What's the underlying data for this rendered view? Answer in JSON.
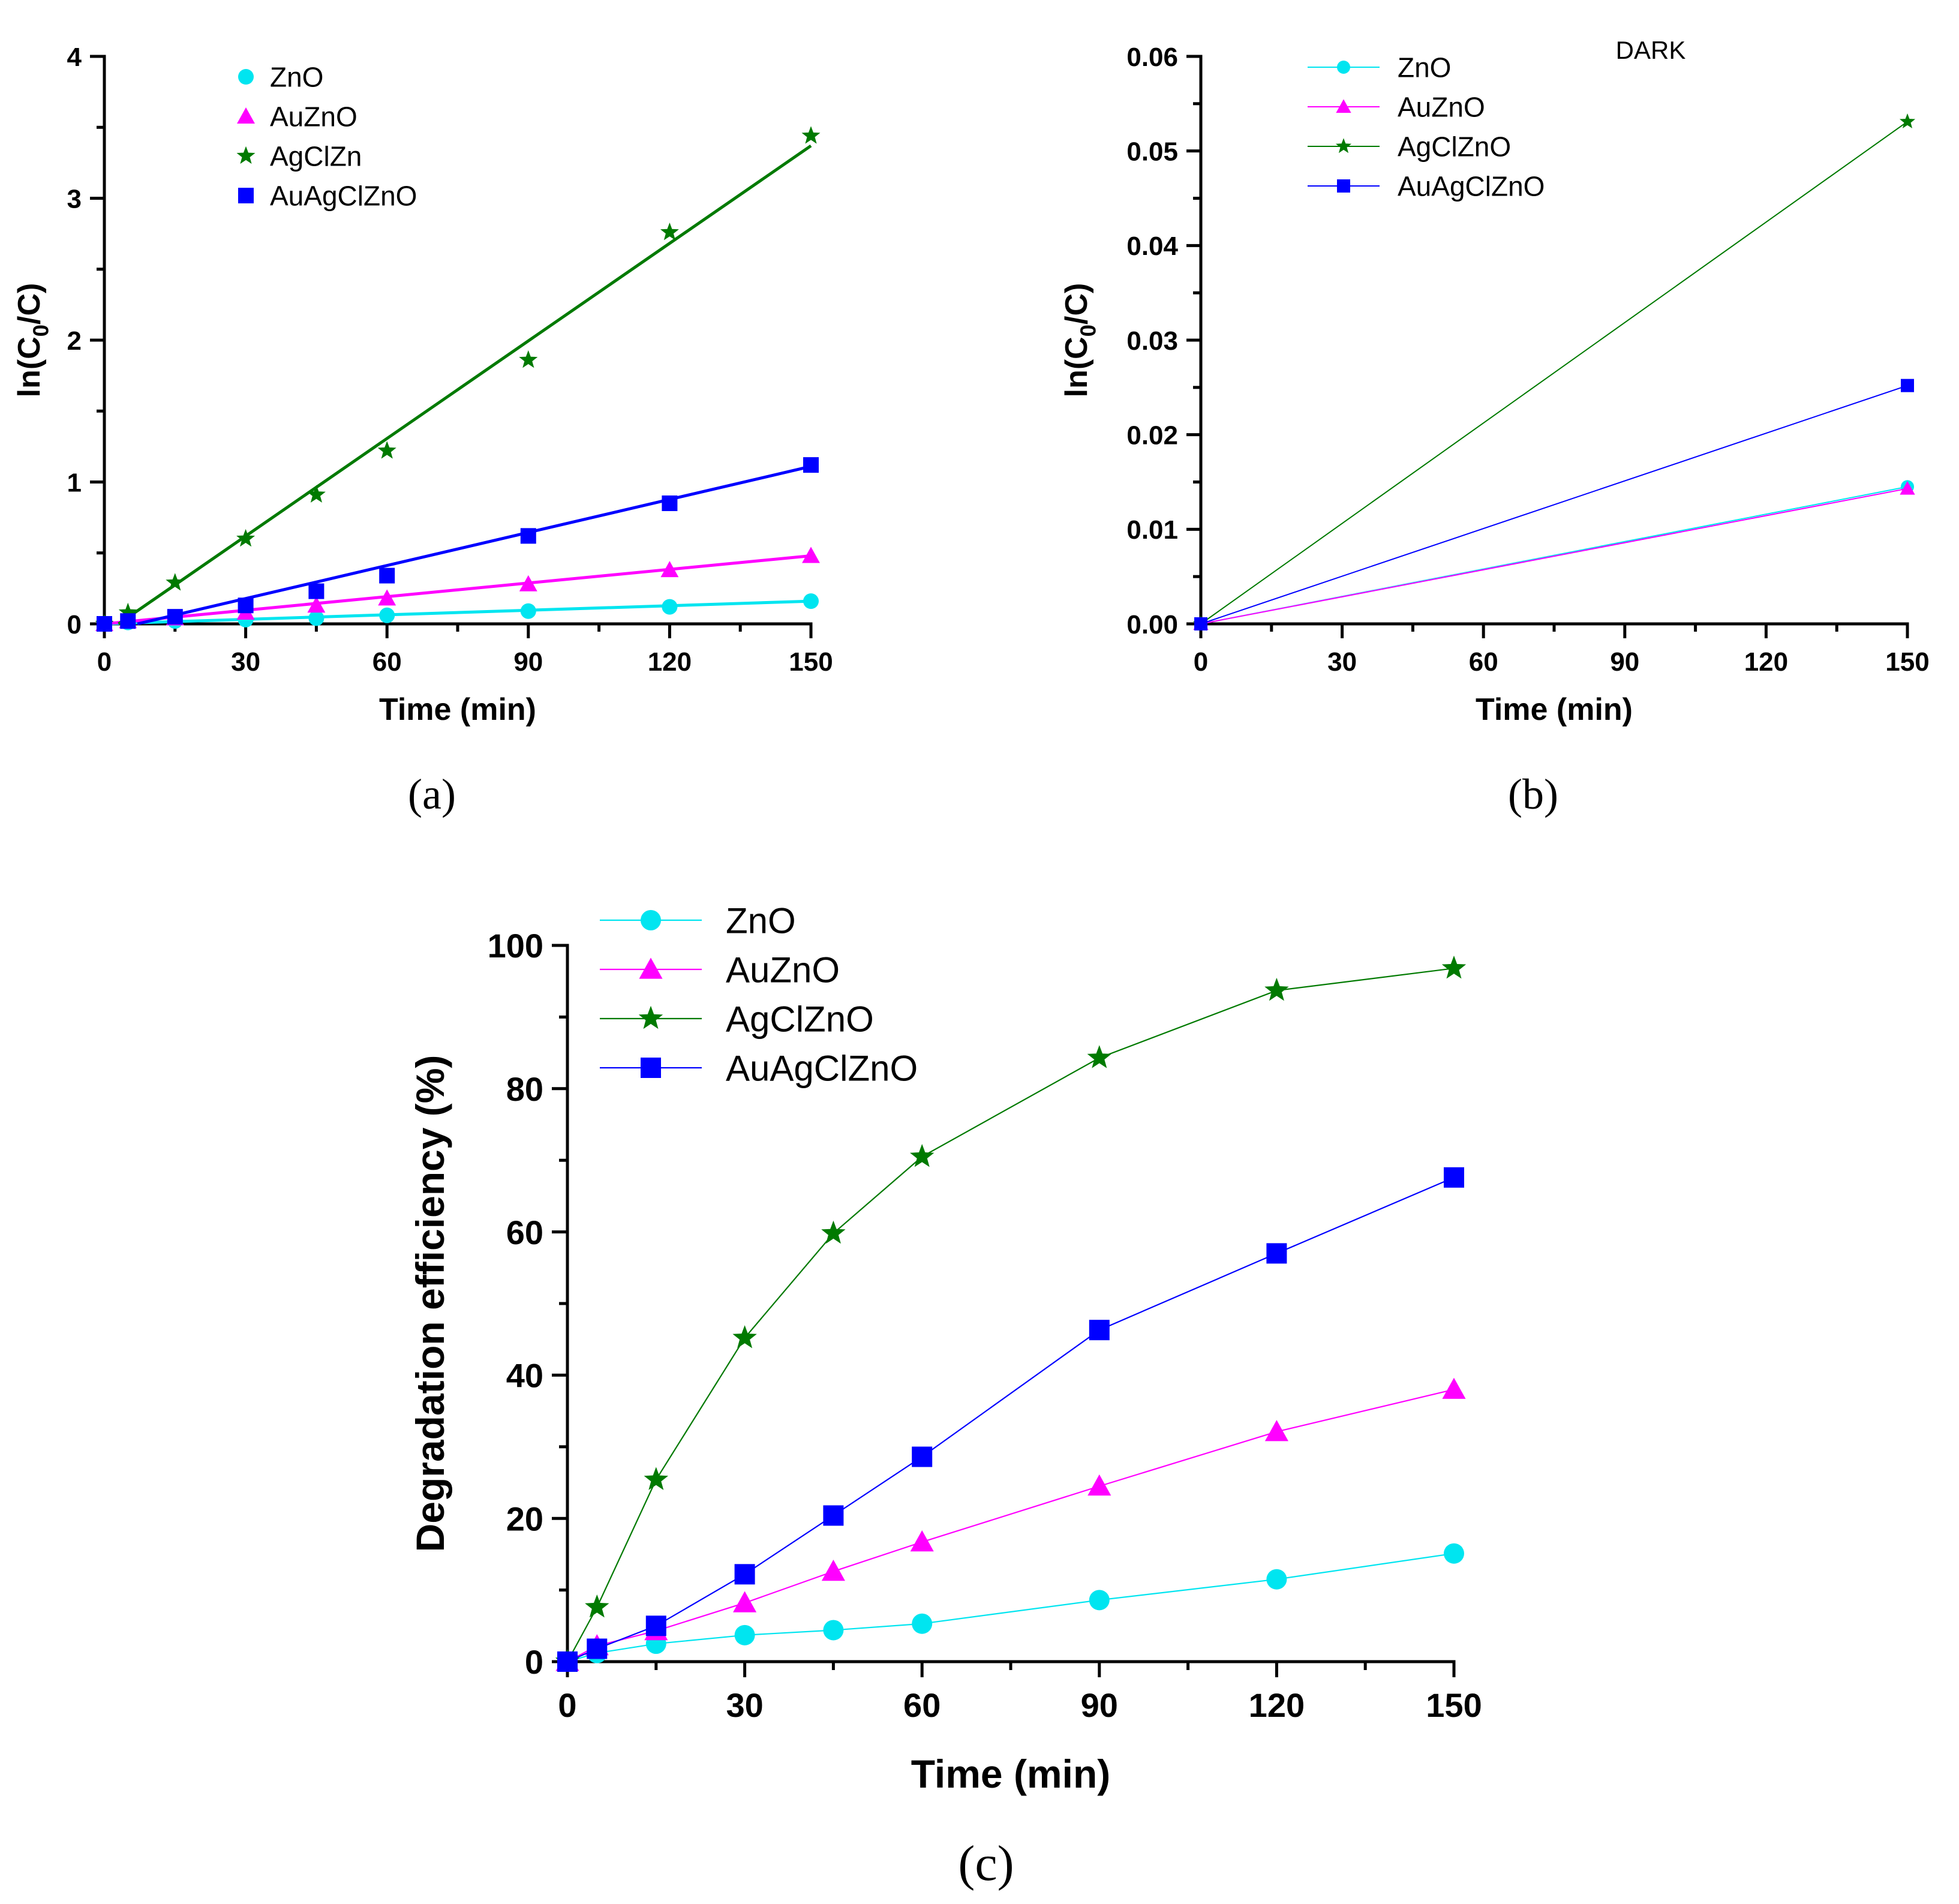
{
  "colors": {
    "ZnO": "#00e5f0",
    "AuZnO": "#ff00ff",
    "AgCl": "#007a00",
    "AuAgClZnO": "#0000ff",
    "axis": "#000000"
  },
  "chart_data": [
    {
      "id": "a",
      "type": "scatter",
      "panel_label": "(a)",
      "xlabel": "Time (min)",
      "ylabel_main": "ln(C",
      "ylabel_sub": "0",
      "ylabel_tail": "/C)",
      "xlim": [
        0,
        150
      ],
      "ylim": [
        0,
        4
      ],
      "x_ticks": [
        0,
        30,
        60,
        90,
        120,
        150
      ],
      "x_tick_labels": [
        "0",
        "30",
        "60",
        "90",
        "120",
        "150"
      ],
      "y_ticks": [
        0,
        1,
        2,
        3,
        4
      ],
      "y_tick_labels": [
        "0",
        "1",
        "2",
        "3",
        "4"
      ],
      "legend_position": "top-left",
      "fit_lines": true,
      "series": [
        {
          "name": "ZnO",
          "color_key": "ZnO",
          "marker": "circle",
          "line": true,
          "x": [
            0,
            5,
            15,
            30,
            45,
            60,
            90,
            120,
            150
          ],
          "y": [
            0,
            0.01,
            0.02,
            0.03,
            0.04,
            0.06,
            0.09,
            0.12,
            0.16
          ]
        },
        {
          "name": "AuZnO",
          "color_key": "AuZnO",
          "marker": "triangle",
          "line": true,
          "x": [
            0,
            5,
            15,
            30,
            45,
            60,
            90,
            120,
            150
          ],
          "y": [
            0,
            0.02,
            0.04,
            0.08,
            0.13,
            0.18,
            0.28,
            0.38,
            0.48
          ]
        },
        {
          "name": "AgClZn",
          "color_key": "AgCl",
          "marker": "star",
          "line": true,
          "x": [
            0,
            5,
            15,
            30,
            45,
            60,
            90,
            120,
            150
          ],
          "y": [
            0,
            0.08,
            0.29,
            0.6,
            0.91,
            1.22,
            1.86,
            2.76,
            3.44
          ]
        },
        {
          "name": "AuAgClZnO",
          "color_key": "AuAgClZnO",
          "marker": "square",
          "line": true,
          "x": [
            0,
            5,
            15,
            30,
            45,
            60,
            90,
            120,
            150
          ],
          "y": [
            0,
            0.02,
            0.05,
            0.13,
            0.23,
            0.34,
            0.62,
            0.85,
            1.12
          ]
        }
      ],
      "fits": [
        {
          "color_key": "ZnO",
          "x": [
            0,
            150
          ],
          "y": [
            0,
            0.16
          ]
        },
        {
          "color_key": "AuZnO",
          "x": [
            0,
            150
          ],
          "y": [
            0,
            0.48
          ]
        },
        {
          "color_key": "AgCl",
          "x": [
            3,
            150
          ],
          "y": [
            0,
            3.37
          ]
        },
        {
          "color_key": "AuAgClZnO",
          "x": [
            7,
            150
          ],
          "y": [
            0,
            1.11
          ]
        }
      ]
    },
    {
      "id": "b",
      "type": "line",
      "panel_label": "(b)",
      "annotation": "DARK",
      "xlabel": "Time (min)",
      "ylabel_main": "ln(C",
      "ylabel_sub": "0",
      "ylabel_tail": "/C)",
      "xlim": [
        0,
        150
      ],
      "ylim": [
        0,
        0.06
      ],
      "x_ticks": [
        0,
        30,
        60,
        90,
        120,
        150
      ],
      "x_tick_labels": [
        "0",
        "30",
        "60",
        "90",
        "120",
        "150"
      ],
      "y_ticks": [
        0,
        0.01,
        0.02,
        0.03,
        0.04,
        0.05,
        0.06
      ],
      "y_tick_labels": [
        "0.00",
        "0.01",
        "0.02",
        "0.03",
        "0.04",
        "0.05",
        "0.06"
      ],
      "legend_position": "top-left",
      "series": [
        {
          "name": "ZnO",
          "color_key": "ZnO",
          "marker": "circle",
          "line": true,
          "x": [
            0,
            150
          ],
          "y": [
            0,
            0.0145
          ]
        },
        {
          "name": "AuZnO",
          "color_key": "AuZnO",
          "marker": "triangle",
          "line": true,
          "x": [
            0,
            150
          ],
          "y": [
            0,
            0.0143
          ]
        },
        {
          "name": "AgClZnO",
          "color_key": "AgCl",
          "marker": "star",
          "line": true,
          "x": [
            0,
            150
          ],
          "y": [
            0,
            0.0531
          ]
        },
        {
          "name": "AuAgClZnO",
          "color_key": "AuAgClZnO",
          "marker": "square",
          "line": true,
          "x": [
            0,
            150
          ],
          "y": [
            0,
            0.0252
          ]
        }
      ]
    },
    {
      "id": "c",
      "type": "line",
      "panel_label": "(c)",
      "xlabel": "Time (min)",
      "ylabel": "Degradation efficiency (%)",
      "xlim": [
        0,
        150
      ],
      "ylim": [
        0,
        100
      ],
      "x_ticks": [
        0,
        30,
        60,
        90,
        120,
        150
      ],
      "x_tick_labels": [
        "0",
        "30",
        "60",
        "90",
        "120",
        "150"
      ],
      "y_ticks": [
        0,
        20,
        40,
        60,
        80,
        100
      ],
      "y_tick_labels": [
        "0",
        "20",
        "40",
        "60",
        "80",
        "100"
      ],
      "legend_position": "top-left",
      "series": [
        {
          "name": "ZnO",
          "color_key": "ZnO",
          "marker": "circle",
          "line": true,
          "x": [
            0,
            5,
            15,
            30,
            45,
            60,
            90,
            120,
            150
          ],
          "y": [
            0,
            1.2,
            2.5,
            3.7,
            4.4,
            5.3,
            8.6,
            11.5,
            15.1
          ]
        },
        {
          "name": "AuZnO",
          "color_key": "AuZnO",
          "marker": "triangle",
          "line": true,
          "x": [
            0,
            5,
            15,
            30,
            45,
            60,
            90,
            120,
            150
          ],
          "y": [
            0,
            2.2,
            4.3,
            8.2,
            12.6,
            16.7,
            24.5,
            32.1,
            38.0
          ]
        },
        {
          "name": "AgClZnO",
          "color_key": "AgCl",
          "marker": "star",
          "line": true,
          "x": [
            0,
            5,
            15,
            30,
            45,
            60,
            90,
            120,
            150
          ],
          "y": [
            0,
            7.6,
            25.4,
            45.2,
            59.8,
            70.5,
            84.3,
            93.7,
            96.8
          ]
        },
        {
          "name": "AuAgClZnO",
          "color_key": "AuAgClZnO",
          "marker": "square",
          "line": true,
          "x": [
            0,
            5,
            15,
            30,
            45,
            60,
            90,
            120,
            150
          ],
          "y": [
            0,
            1.8,
            5.0,
            12.2,
            20.4,
            28.6,
            46.3,
            57.0,
            67.6
          ]
        }
      ]
    }
  ]
}
